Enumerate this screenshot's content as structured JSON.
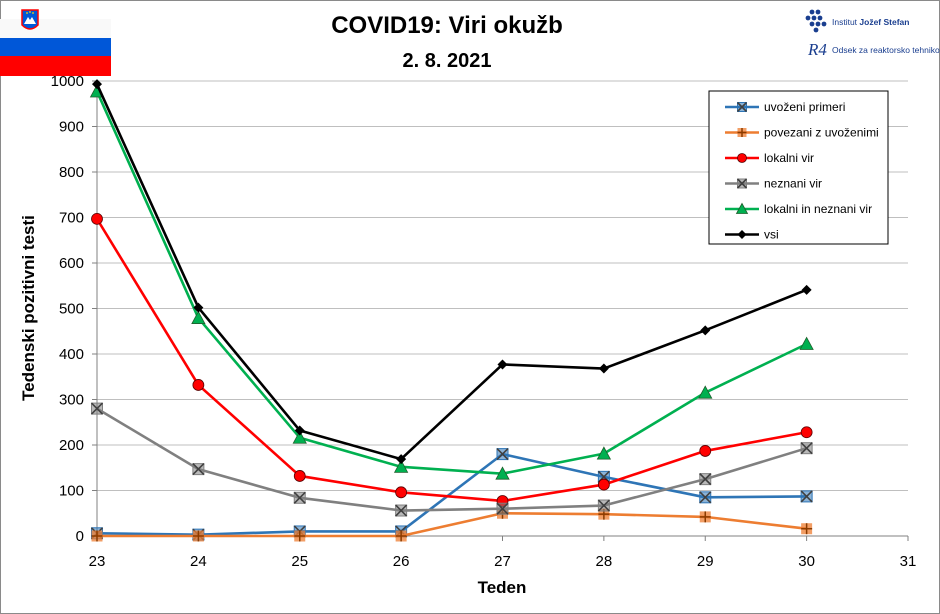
{
  "chart_data": {
    "type": "line",
    "title": "COVID19: Viri okužb",
    "subtitle": "2. 8. 2021",
    "xlabel": "Teden",
    "ylabel": "Tedenski pozitivni testi",
    "xlim": [
      23,
      31
    ],
    "ylim": [
      0,
      1000
    ],
    "xticks": [
      23,
      24,
      25,
      26,
      27,
      28,
      29,
      30,
      31
    ],
    "yticks": [
      0,
      100,
      200,
      300,
      400,
      500,
      600,
      700,
      800,
      900,
      1000
    ],
    "grid": "horizontal",
    "legend_position": "top-right",
    "x": [
      23,
      24,
      25,
      26,
      27,
      28,
      29,
      30
    ],
    "series": [
      {
        "name": "uvoženi primeri",
        "color": "#2e75b6",
        "marker": "square-x",
        "values": [
          6,
          3,
          10,
          10,
          180,
          130,
          85,
          87
        ]
      },
      {
        "name": "povezani z uvoženimi",
        "color": "#ed7d31",
        "marker": "square-plus",
        "values": [
          0,
          0,
          0,
          0,
          50,
          48,
          42,
          16
        ]
      },
      {
        "name": "lokalni vir",
        "color": "#ff0000",
        "marker": "circle",
        "values": [
          697,
          332,
          132,
          96,
          77,
          113,
          187,
          228
        ]
      },
      {
        "name": "neznani vir",
        "color": "#808080",
        "marker": "square-x",
        "values": [
          280,
          147,
          84,
          56,
          60,
          67,
          125,
          193
        ]
      },
      {
        "name": "lokalni in neznani vir",
        "color": "#00b050",
        "marker": "triangle",
        "values": [
          977,
          479,
          216,
          152,
          137,
          181,
          315,
          422
        ]
      },
      {
        "name": "vsi",
        "color": "#000000",
        "marker": "diamond",
        "values": [
          993,
          502,
          232,
          169,
          377,
          368,
          452,
          541
        ]
      }
    ]
  },
  "logo": {
    "institute_prefix": "Institut ",
    "institute_name": "Jožef Stefan",
    "department": "Odsek za reaktorsko tehniko",
    "mark": "R4"
  },
  "colors": {
    "flag_white": "#ffffff",
    "flag_blue": "#0057d8",
    "flag_red": "#ff0000",
    "grid": "#bfbfbf"
  }
}
